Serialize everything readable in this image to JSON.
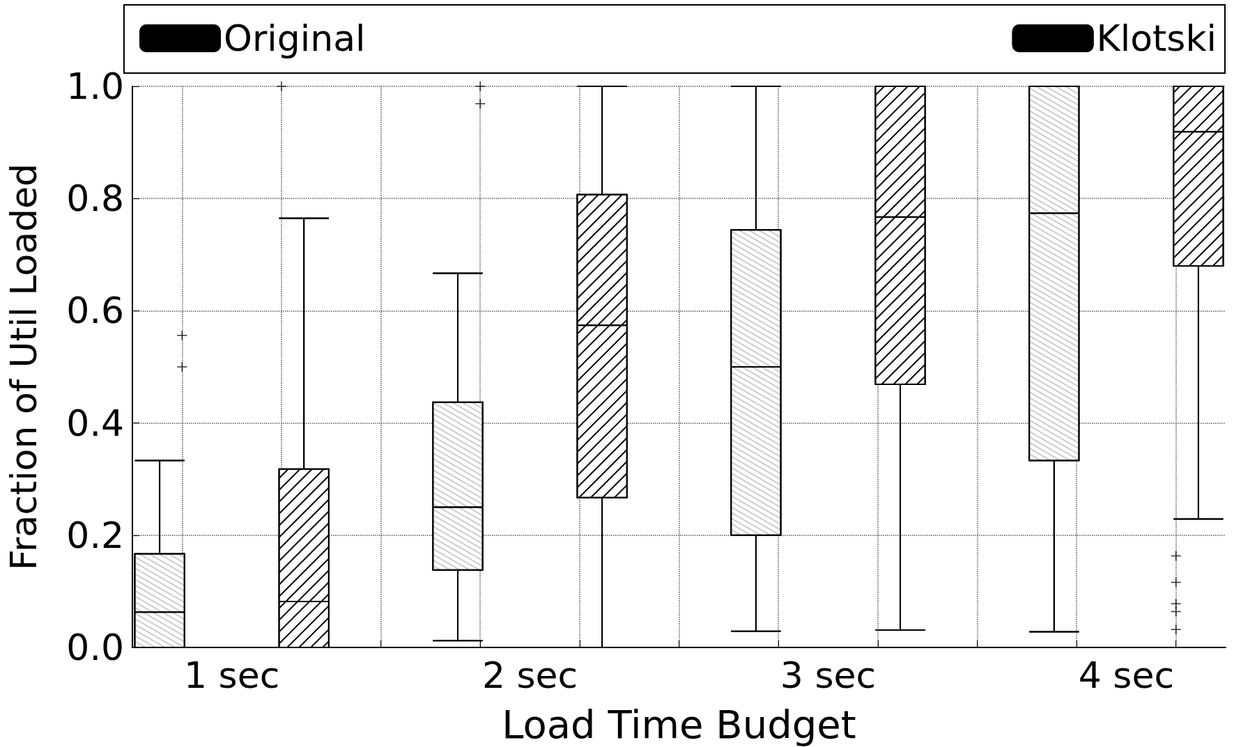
{
  "chart_data": {
    "type": "box",
    "xlabel": "Load Time Budget",
    "ylabel": "Fraction of Util Loaded",
    "categories": [
      "1 sec",
      "2 sec",
      "3 sec",
      "4 sec"
    ],
    "ylim": [
      0,
      1
    ],
    "yticks": [
      {
        "value": 0,
        "label": "0.0"
      },
      {
        "value": 0.2,
        "label": "0.2"
      },
      {
        "value": 0.4,
        "label": "0.4"
      },
      {
        "value": 0.6,
        "label": "0.6"
      },
      {
        "value": 0.8,
        "label": "0.8"
      },
      {
        "value": 1,
        "label": "1.0"
      }
    ],
    "grid": true,
    "legend": "top",
    "marker": "cross",
    "series": [
      {
        "name": "Original",
        "color": "#ffffff",
        "boxes": [
          {
            "low": 0,
            "q1": 0,
            "median": 0.063,
            "q3": 0.167,
            "high": 0.333,
            "outliers": [
              0.5,
              0.556
            ]
          },
          {
            "low": 0.012,
            "q1": 0.138,
            "median": 0.25,
            "q3": 0.437,
            "high": 0.667,
            "outliers": [
              0.969,
              1.0
            ]
          },
          {
            "low": 0.029,
            "q1": 0.2,
            "median": 0.5,
            "q3": 0.744,
            "high": 1.0
          },
          {
            "low": 0.028,
            "q1": 0.333,
            "median": 0.774,
            "q3": 1.0,
            "high": 1.0
          }
        ]
      },
      {
        "name": "Klotski",
        "color": "#ffffff",
        "boxes": [
          {
            "low": 0,
            "q1": 0,
            "median": 0.082,
            "q3": 0.318,
            "high": 0.765,
            "outliers": [
              1.0
            ]
          },
          {
            "low": 0,
            "q1": 0.267,
            "median": 0.574,
            "q3": 0.807,
            "high": 1.0
          },
          {
            "low": 0.031,
            "q1": 0.469,
            "median": 0.767,
            "q3": 1.0,
            "high": 1.0
          },
          {
            "low": 0.229,
            "q1": 0.68,
            "median": 0.919,
            "q3": 1.0,
            "high": 1.0,
            "outliers": [
              0.163,
              0.116,
              0.078,
              0.064,
              0.032
            ]
          }
        ]
      }
    ]
  }
}
